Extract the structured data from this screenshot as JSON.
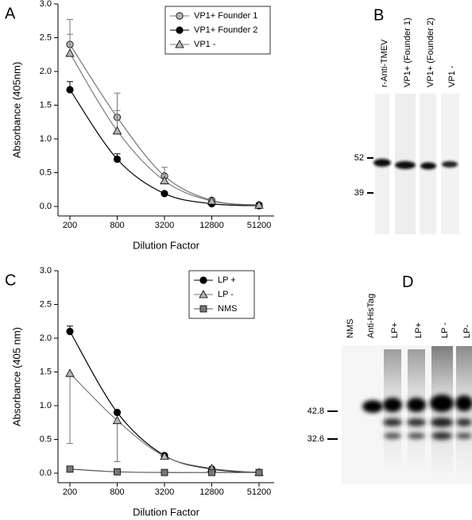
{
  "chart_data": [
    {
      "type": "line",
      "panel": "A",
      "xlabel": "Dilution Factor",
      "ylabel": "Absorbance (405nm)",
      "categories": [
        "200",
        "800",
        "3200",
        "12800",
        "51200"
      ],
      "ylim": [
        0,
        3
      ],
      "yticks": [
        {
          "value": 0,
          "label": "0.0"
        },
        0.5,
        {
          "value": 1,
          "label": "1.0"
        },
        1.5,
        {
          "value": 2,
          "label": "2.0"
        },
        2.5,
        {
          "value": 3,
          "label": "3.0"
        }
      ],
      "legend": "upper right",
      "series": [
        {
          "name": "VP1+ Founder 1",
          "color": "#b4b4b4",
          "line_color": "#777777",
          "marker": "circle",
          "error_direction": "up",
          "values": [
            2.4,
            1.32,
            0.45,
            0.09,
            0.02
          ],
          "errors": [
            0.37,
            0.36,
            0.13,
            0.02,
            0.01
          ]
        },
        {
          "name": "VP1+ Founder 2",
          "color": "#000000",
          "line_color": "#000000",
          "marker": "circle",
          "error_direction": "up",
          "values": [
            1.73,
            0.7,
            0.19,
            0.04,
            0.01
          ],
          "errors": [
            0.12,
            0.08,
            0.02,
            0.01,
            0.01
          ]
        },
        {
          "name": "VP1 -",
          "color": "#b4b4b4",
          "line_color": "#777777",
          "marker": "triangle",
          "error_direction": "up",
          "values": [
            2.27,
            1.12,
            0.38,
            0.08,
            0.02
          ],
          "errors": [
            0.28,
            0.3,
            0.1,
            0.02,
            0.01
          ]
        }
      ]
    },
    {
      "type": "line",
      "panel": "C",
      "xlabel": "Dilution Factor",
      "ylabel": "Absorbance (405 nm)",
      "categories": [
        "200",
        "800",
        "3200",
        "12800",
        "51200"
      ],
      "ylim": [
        0,
        3
      ],
      "yticks": [
        {
          "value": 0,
          "label": "0.0"
        },
        0.5,
        {
          "value": 1,
          "label": "1.0"
        },
        1.5,
        {
          "value": 2,
          "label": "2.0"
        },
        2.5,
        {
          "value": 3,
          "label": "3.0"
        }
      ],
      "legend": "upper right",
      "series": [
        {
          "name": "LP +",
          "color": "#000000",
          "line_color": "#000000",
          "marker": "circle",
          "error_direction": "up",
          "values": [
            2.1,
            0.9,
            0.26,
            0.06,
            0.01
          ],
          "errors": [
            0.08,
            0.02,
            0.02,
            0.01,
            0.01
          ]
        },
        {
          "name": "LP -",
          "color": "#b4b4b4",
          "line_color": "#777777",
          "marker": "triangle",
          "error_direction": "down",
          "values": [
            1.48,
            0.78,
            0.25,
            0.07,
            0.01
          ],
          "errors": [
            1.04,
            0.61,
            0.02,
            0.01,
            0.01
          ]
        },
        {
          "name": "NMS",
          "color": "#777777",
          "line_color": "#555555",
          "marker": "square",
          "error_direction": "up",
          "values": [
            0.06,
            0.02,
            0.01,
            0.01,
            0.01
          ],
          "errors": [
            0.01,
            0.01,
            0.01,
            0.01,
            0.01
          ]
        }
      ]
    }
  ],
  "blots": [
    {
      "panel": "B",
      "lanes": [
        "r-Anti-TMEV",
        "VP1+ (Founder 1)",
        "VP1+ (Founder 2)",
        "VP1 -"
      ],
      "markers": [
        "52",
        "39"
      ]
    },
    {
      "panel": "D",
      "lanes": [
        "NMS",
        "Anti-HisTag",
        "LP+",
        "LP+",
        "LP -",
        "LP-"
      ],
      "markers": [
        "42.8",
        "32.6"
      ]
    }
  ]
}
